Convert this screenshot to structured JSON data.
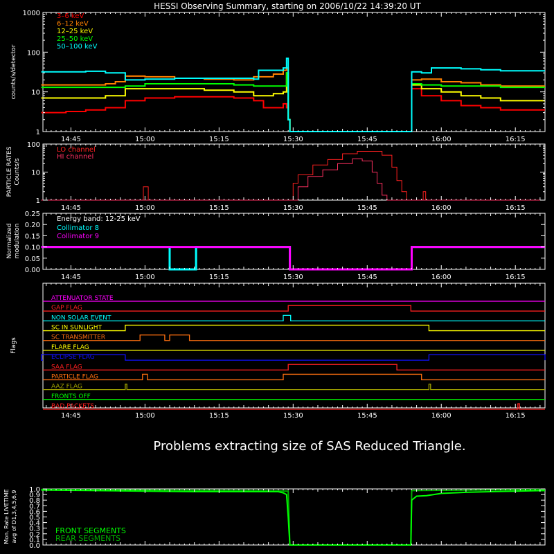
{
  "title": "HESSI Observing Summary, starting on 2006/10/22 14:39:20 UT",
  "message": "Problems extracting size of SAS Reduced Triangle.",
  "time_ticks": [
    "14:45",
    "15:00",
    "15:15",
    "15:30",
    "15:45",
    "16:00",
    "16:15"
  ],
  "colors": {
    "white": "#ffffff",
    "red": "#ff0000",
    "orange": "#ff8000",
    "yellow": "#ffff00",
    "green": "#00ff00",
    "cyan": "#00ffff",
    "magenta": "#ff00ff",
    "lo": "#ff2020",
    "hi": "#ff3060",
    "blue": "#1010ff",
    "olive": "#a0a000",
    "brown": "#ff7010"
  },
  "chart_data": [
    {
      "type": "line",
      "title": "HESSI Observing Summary, starting on 2006/10/22 14:39:20 UT",
      "ylabel": "counts/s/detector",
      "yscale": "log",
      "ylim": [
        1,
        1000
      ],
      "y_ticks": [
        "1",
        "10",
        "100",
        "1000"
      ],
      "xlim": [
        "14:39:20",
        "16:21"
      ],
      "legend_position": "top-left",
      "series": [
        {
          "name": "3–6 keV",
          "color": "#ff0000",
          "points": [
            [
              "14:39",
              3
            ],
            [
              "14:44",
              3.2
            ],
            [
              "14:48",
              3.5
            ],
            [
              "14:52",
              4
            ],
            [
              "14:56",
              6
            ],
            [
              "15:00",
              7
            ],
            [
              "15:06",
              7.5
            ],
            [
              "15:12",
              7.5
            ],
            [
              "15:18",
              7
            ],
            [
              "15:22",
              6
            ],
            [
              "15:24",
              4
            ],
            [
              "15:26",
              4
            ],
            [
              "15:28",
              5
            ],
            [
              "15:28:40",
              4
            ],
            [
              "15:29",
              2
            ],
            [
              "15:29:20",
              1
            ],
            [
              "15:53:50",
              1
            ],
            [
              "15:54",
              12
            ],
            [
              "15:56",
              8
            ],
            [
              "16:00",
              6
            ],
            [
              "16:04",
              4.5
            ],
            [
              "16:08",
              4
            ],
            [
              "16:12",
              3.5
            ],
            [
              "16:16",
              3.5
            ],
            [
              "16:21",
              3.5
            ]
          ]
        },
        {
          "name": "6–12 keV",
          "color": "#ff8000",
          "points": [
            [
              "14:39",
              15
            ],
            [
              "14:44",
              15
            ],
            [
              "14:48",
              15
            ],
            [
              "14:52",
              16
            ],
            [
              "14:54",
              18
            ],
            [
              "14:56",
              25
            ],
            [
              "15:00",
              24
            ],
            [
              "15:06",
              22
            ],
            [
              "15:12",
              21
            ],
            [
              "15:18",
              20
            ],
            [
              "15:22",
              24
            ],
            [
              "15:26",
              28
            ],
            [
              "15:28",
              35
            ],
            [
              "15:28:40",
              40
            ],
            [
              "15:29",
              2
            ],
            [
              "15:29:20",
              1
            ],
            [
              "15:53:50",
              1
            ],
            [
              "15:54",
              20
            ],
            [
              "15:56",
              21
            ],
            [
              "16:00",
              18
            ],
            [
              "16:04",
              17
            ],
            [
              "16:08",
              15
            ],
            [
              "16:12",
              14
            ],
            [
              "16:16",
              14
            ],
            [
              "16:21",
              14
            ]
          ]
        },
        {
          "name": "12–25 keV",
          "color": "#ffff00",
          "points": [
            [
              "14:39",
              7
            ],
            [
              "14:44",
              7
            ],
            [
              "14:48",
              7
            ],
            [
              "14:52",
              8
            ],
            [
              "14:56",
              12
            ],
            [
              "15:00",
              12
            ],
            [
              "15:06",
              12
            ],
            [
              "15:12",
              11
            ],
            [
              "15:18",
              10
            ],
            [
              "15:22",
              8
            ],
            [
              "15:26",
              9
            ],
            [
              "15:28",
              10
            ],
            [
              "15:28:40",
              30
            ],
            [
              "15:29",
              2
            ],
            [
              "15:29:20",
              1
            ],
            [
              "15:53:50",
              1
            ],
            [
              "15:54",
              15
            ],
            [
              "15:56",
              12
            ],
            [
              "16:00",
              10
            ],
            [
              "16:04",
              8
            ],
            [
              "16:08",
              7
            ],
            [
              "16:12",
              6
            ],
            [
              "16:16",
              6
            ],
            [
              "16:21",
              6
            ]
          ]
        },
        {
          "name": "25–50 keV",
          "color": "#00ff00",
          "points": [
            [
              "14:39",
              13
            ],
            [
              "14:44",
              13
            ],
            [
              "14:48",
              13
            ],
            [
              "14:52",
              13
            ],
            [
              "14:56",
              14
            ],
            [
              "15:00",
              16
            ],
            [
              "15:06",
              16
            ],
            [
              "15:12",
              16
            ],
            [
              "15:18",
              15
            ],
            [
              "15:22",
              14
            ],
            [
              "15:26",
              14
            ],
            [
              "15:28",
              14
            ],
            [
              "15:28:40",
              30
            ],
            [
              "15:29",
              2
            ],
            [
              "15:29:20",
              1
            ],
            [
              "15:53:50",
              1
            ],
            [
              "15:54",
              16
            ],
            [
              "15:56",
              15
            ],
            [
              "16:00",
              14
            ],
            [
              "16:04",
              14
            ],
            [
              "16:08",
              14
            ],
            [
              "16:12",
              13
            ],
            [
              "16:16",
              13
            ],
            [
              "16:21",
              13
            ]
          ]
        },
        {
          "name": "50–100 keV",
          "color": "#00ffff",
          "points": [
            [
              "14:39",
              32
            ],
            [
              "14:44",
              32
            ],
            [
              "14:48",
              33
            ],
            [
              "14:52",
              30
            ],
            [
              "14:56",
              20
            ],
            [
              "15:00",
              21
            ],
            [
              "15:06",
              22
            ],
            [
              "15:12",
              22
            ],
            [
              "15:18",
              22
            ],
            [
              "15:22",
              21
            ],
            [
              "15:23",
              35
            ],
            [
              "15:26",
              35
            ],
            [
              "15:28",
              40
            ],
            [
              "15:28:40",
              70
            ],
            [
              "15:29",
              2
            ],
            [
              "15:29:20",
              1
            ],
            [
              "15:53:50",
              1
            ],
            [
              "15:54",
              32
            ],
            [
              "15:56",
              30
            ],
            [
              "15:58",
              40
            ],
            [
              "16:00",
              40
            ],
            [
              "16:04",
              38
            ],
            [
              "16:08",
              36
            ],
            [
              "16:12",
              34
            ],
            [
              "16:16",
              34
            ],
            [
              "16:21",
              34
            ]
          ]
        }
      ]
    },
    {
      "type": "line",
      "ylabel": "PARTICLE RATES Counts/s",
      "yscale": "log",
      "ylim": [
        1,
        100
      ],
      "y_ticks": [
        "1",
        "10",
        "100"
      ],
      "legend_position": "top-left",
      "series": [
        {
          "name": "LO channel",
          "color": "#ff2020",
          "points": [
            [
              "14:39",
              1
            ],
            [
              "14:59:30",
              1
            ],
            [
              "14:59:40",
              3
            ],
            [
              "15:00:30",
              3
            ],
            [
              "15:00:40",
              1
            ],
            [
              "15:29",
              1
            ],
            [
              "15:30",
              4
            ],
            [
              "15:31",
              8
            ],
            [
              "15:34",
              18
            ],
            [
              "15:37",
              28
            ],
            [
              "15:40",
              45
            ],
            [
              "15:43",
              55
            ],
            [
              "15:46",
              55
            ],
            [
              "15:48",
              40
            ],
            [
              "15:50",
              15
            ],
            [
              "15:51",
              5
            ],
            [
              "15:52",
              2
            ],
            [
              "15:53",
              1
            ],
            [
              "15:56",
              1
            ],
            [
              "15:56:20",
              2
            ],
            [
              "15:56:50",
              1
            ],
            [
              "16:21",
              1
            ]
          ]
        },
        {
          "name": "HI channel",
          "color": "#ff3060",
          "points": [
            [
              "14:39",
              1
            ],
            [
              "15:29:30",
              1
            ],
            [
              "15:31",
              3
            ],
            [
              "15:33",
              7
            ],
            [
              "15:36",
              12
            ],
            [
              "15:39",
              20
            ],
            [
              "15:42",
              30
            ],
            [
              "15:44",
              25
            ],
            [
              "15:46",
              10
            ],
            [
              "15:47",
              4
            ],
            [
              "15:48",
              1.5
            ],
            [
              "15:49",
              1
            ],
            [
              "16:21",
              1
            ]
          ]
        }
      ]
    },
    {
      "type": "line",
      "ylabel": "Normalized modulation",
      "ylim": [
        0,
        0.25
      ],
      "y_ticks": [
        "0.00",
        "0.05",
        "0.10",
        "0.15",
        "0.20",
        "0.25"
      ],
      "annotation": "Energy band: 12-25 keV",
      "legend_position": "top-left",
      "series": [
        {
          "name": "Collimator 8",
          "color": "#00ffff",
          "points": [
            [
              "14:39",
              0.1
            ],
            [
              "15:04:30",
              0.1
            ],
            [
              "15:05",
              0.0
            ],
            [
              "15:10",
              0.0
            ],
            [
              "15:10:20",
              0.1
            ],
            [
              "15:29",
              0.1
            ],
            [
              "15:29:20",
              0.0
            ],
            [
              "15:53:50",
              0.0
            ],
            [
              "15:54",
              0.1
            ],
            [
              "16:21",
              0.1
            ]
          ]
        },
        {
          "name": "Collimator 9",
          "color": "#ff00ff",
          "points": [
            [
              "14:39",
              0.1
            ],
            [
              "15:29",
              0.1
            ],
            [
              "15:29:20",
              0.0
            ],
            [
              "15:53:50",
              0.0
            ],
            [
              "15:54",
              0.1
            ],
            [
              "16:21",
              0.1
            ]
          ]
        }
      ]
    },
    {
      "type": "line",
      "ylabel": "Flags",
      "series": [
        {
          "name": "ATTENUATOR STATE",
          "color": "#ff00ff",
          "on": []
        },
        {
          "name": "GAP FLAG",
          "color": "#ff2020",
          "on": [
            [
              "15:29",
              "15:53:50"
            ]
          ]
        },
        {
          "name": "NON SOLAR EVENT",
          "color": "#00ffff",
          "on": [
            [
              "15:28",
              "15:29:30"
            ]
          ]
        },
        {
          "name": "SC IN SUNLIGHT",
          "color": "#ffff00",
          "on": [
            [
              "14:56",
              "15:57:30"
            ]
          ]
        },
        {
          "name": "SC TRANSMITTER",
          "color": "#ff7010",
          "on": [
            [
              "14:59",
              "15:04"
            ],
            [
              "15:05",
              "15:09"
            ]
          ]
        },
        {
          "name": "FLARE FLAG",
          "color": "#ffff00",
          "on": []
        },
        {
          "name": "ECLIPSE FLAG",
          "color": "#1010ff",
          "on": [
            [
              "14:39",
              "14:56"
            ],
            [
              "15:57:30",
              "16:21"
            ]
          ]
        },
        {
          "name": "SAA FLAG",
          "color": "#ff2020",
          "on": [
            [
              "15:29",
              "15:51"
            ]
          ]
        },
        {
          "name": "PARTICLE FLAG",
          "color": "#ff7010",
          "on": [
            [
              "14:59:30",
              "15:00:30"
            ],
            [
              "15:28",
              "15:56"
            ]
          ]
        },
        {
          "name": "AAZ FLAG",
          "color": "#a0a000",
          "on": [
            [
              "14:56",
              "14:56:20"
            ],
            [
              "15:57:30",
              "15:57:50"
            ]
          ]
        },
        {
          "name": "FRONTS OFF",
          "color": "#00ff00",
          "on": []
        },
        {
          "name": "BAD PACKETS",
          "color": "#ff2020",
          "on": [
            [
              "16:15:30",
              "16:15:50"
            ]
          ]
        }
      ]
    },
    {
      "type": "line",
      "ylabel": "Mon. Rate LIVETIME avg of D1,3,4,5,6,9",
      "ylim": [
        0,
        1.0
      ],
      "y_ticks": [
        "0.0",
        "0.1",
        "0.2",
        "0.3",
        "0.4",
        "0.5",
        "0.6",
        "0.7",
        "0.8",
        "0.9",
        "1.0"
      ],
      "legend_position": "bottom-left",
      "series": [
        {
          "name": "FRONT SEGMENTS",
          "color": "#00ff00",
          "points": [
            [
              "14:39",
              0.98
            ],
            [
              "14:50",
              0.97
            ],
            [
              "15:00",
              0.96
            ],
            [
              "15:10",
              0.95
            ],
            [
              "15:20",
              0.95
            ],
            [
              "15:27",
              0.95
            ],
            [
              "15:28",
              0.93
            ],
            [
              "15:28:40",
              0.9
            ],
            [
              "15:29",
              0.5
            ],
            [
              "15:29:20",
              0.0
            ],
            [
              "15:53:50",
              0.0
            ],
            [
              "15:54",
              0.8
            ],
            [
              "15:55",
              0.87
            ],
            [
              "15:57",
              0.88
            ],
            [
              "16:00",
              0.92
            ],
            [
              "16:05",
              0.94
            ],
            [
              "16:10",
              0.95
            ],
            [
              "16:15",
              0.96
            ],
            [
              "16:21",
              0.97
            ]
          ]
        },
        {
          "name": "REAR SEGMENTS",
          "color": "#00b000",
          "points": [
            [
              "14:39",
              0.99
            ],
            [
              "15:00",
              0.98
            ],
            [
              "15:20",
              0.97
            ],
            [
              "15:29",
              0.96
            ],
            [
              "15:29:20",
              0.0
            ],
            [
              "15:53:50",
              0.0
            ],
            [
              "15:54",
              0.97
            ],
            [
              "16:21",
              0.99
            ]
          ]
        }
      ]
    }
  ]
}
